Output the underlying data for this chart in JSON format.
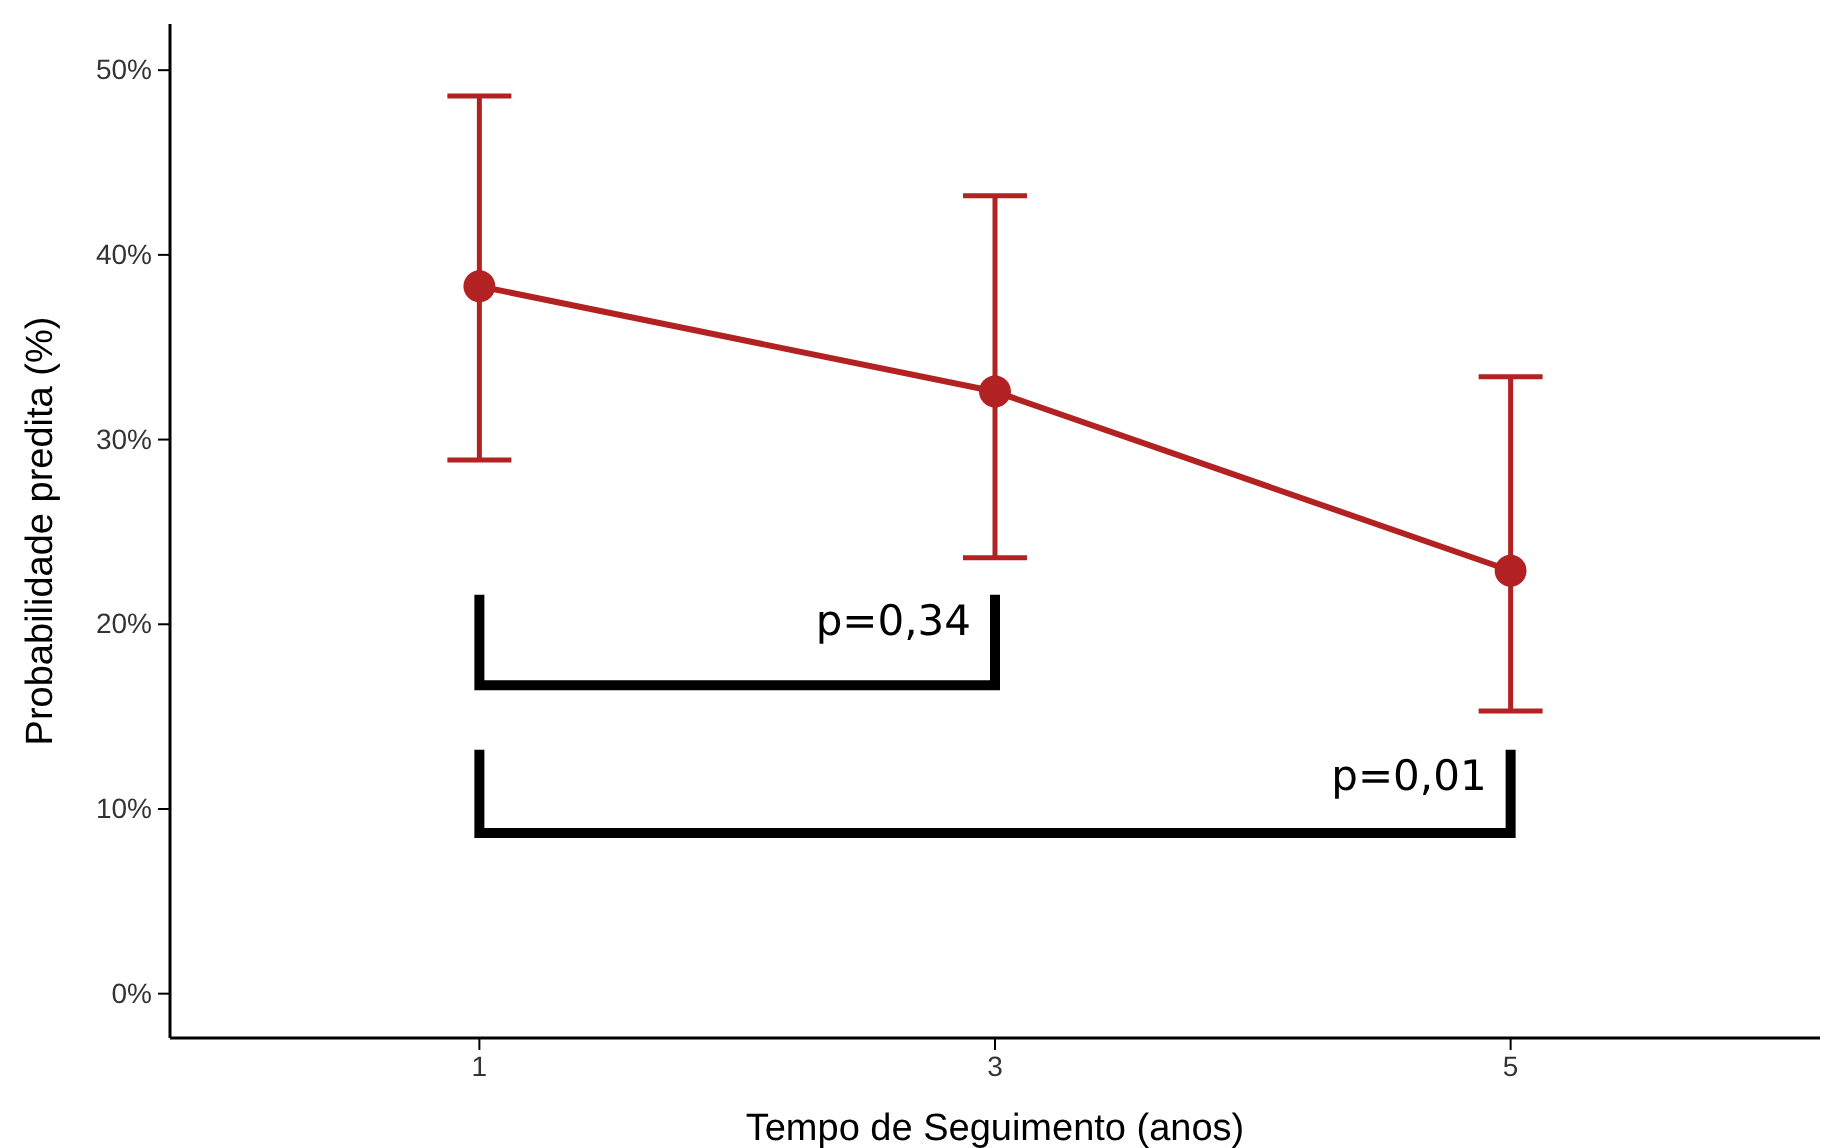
{
  "chart_data": {
    "type": "line",
    "xlabel": "Tempo de Seguimento (anos)",
    "ylabel": "Probabilidade predita (%)",
    "categories": [
      "1",
      "3",
      "5"
    ],
    "series": [
      {
        "color": "#b22222",
        "values": [
          38.3,
          32.6,
          22.9
        ],
        "errors": [
          [
            28.9,
            48.6
          ],
          [
            23.6,
            43.2
          ],
          [
            15.3,
            33.4
          ]
        ]
      }
    ],
    "ylim": [
      -2.4,
      52.5
    ],
    "yticks": [
      {
        "value": 0,
        "label": "0%"
      },
      {
        "value": 10,
        "label": "10%"
      },
      {
        "value": 20,
        "label": "20%"
      },
      {
        "value": 30,
        "label": "30%"
      },
      {
        "value": 40,
        "label": "40%"
      },
      {
        "value": 50,
        "label": "50%"
      }
    ],
    "marker": "circle",
    "line_style": "solid",
    "grid": false,
    "annotations": [
      "p=0,34",
      "p=0,01"
    ]
  }
}
